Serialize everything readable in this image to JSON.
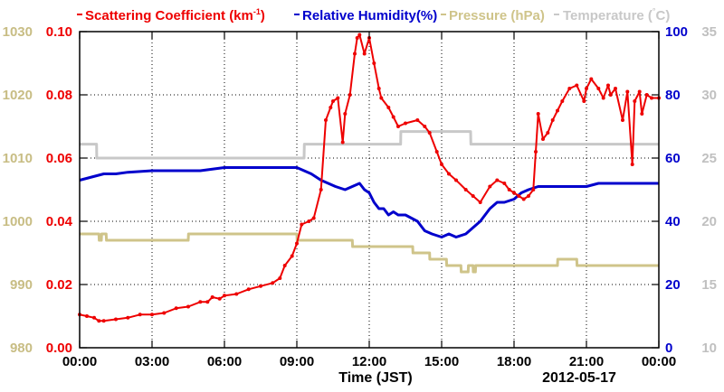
{
  "chart_data": {
    "type": "line",
    "legend": {
      "placement": "top",
      "entries": [
        {
          "key": "scat",
          "text": "Scattering Coefficient (km",
          "sup": "-1",
          "tail": ")",
          "color": "#ee0000"
        },
        {
          "key": "rh",
          "text": "Relative Humidity(%)",
          "color": "#0000cc"
        },
        {
          "key": "pres",
          "text": "Pressure (hPa)",
          "color": "#cfc48a"
        },
        {
          "key": "temp",
          "text": "Temperature (",
          "sup": "°",
          "tail": "C)",
          "color": "#c8c8c8"
        }
      ]
    },
    "xlabel": "Time (JST)",
    "date": "2012-05-17",
    "x_ticks": [
      "00:00",
      "03:00",
      "06:00",
      "09:00",
      "12:00",
      "15:00",
      "18:00",
      "21:00",
      "00:00"
    ],
    "xlim_hours": [
      0,
      24
    ],
    "grid": true,
    "axes": {
      "scat": {
        "side": "left-inner",
        "color": "#ee0000",
        "ylim": [
          0,
          0.1
        ],
        "ticks": [
          "0.00",
          "0.02",
          "0.04",
          "0.06",
          "0.08",
          "0.10"
        ]
      },
      "pres": {
        "side": "left-outer",
        "color": "#c8bd84",
        "ylim": [
          980,
          1030
        ],
        "ticks": [
          "980",
          "990",
          "1000",
          "1010",
          "1020",
          "1030"
        ]
      },
      "rh": {
        "side": "right-inner",
        "color": "#0000cc",
        "ylim": [
          0,
          100
        ],
        "ticks": [
          "0",
          "20",
          "40",
          "60",
          "80",
          "100"
        ]
      },
      "temp": {
        "side": "right-outer",
        "color": "#c0c0c0",
        "ylim": [
          10,
          35
        ],
        "ticks": [
          "10",
          "15",
          "20",
          "25",
          "30",
          "35"
        ]
      }
    },
    "series": [
      {
        "name": "Scattering Coefficient (km-1)",
        "axis": "scat",
        "color": "#ee0000",
        "marker": true,
        "x": [
          0,
          0.3,
          0.6,
          0.8,
          1.0,
          1.5,
          2.0,
          2.5,
          3.0,
          3.5,
          4.0,
          4.5,
          5.0,
          5.3,
          5.5,
          5.8,
          6.0,
          6.5,
          7.0,
          7.5,
          8.0,
          8.3,
          8.5,
          8.8,
          9.0,
          9.2,
          9.5,
          9.7,
          10.0,
          10.2,
          10.4,
          10.5,
          10.7,
          10.9,
          11.0,
          11.2,
          11.4,
          11.5,
          11.6,
          11.8,
          12.0,
          12.2,
          12.4,
          12.5,
          12.8,
          13.0,
          13.2,
          13.5,
          14.0,
          14.3,
          14.5,
          14.8,
          15.0,
          15.3,
          15.6,
          16.0,
          16.3,
          16.6,
          17.0,
          17.3,
          17.6,
          17.8,
          18.0,
          18.2,
          18.4,
          18.6,
          18.8,
          18.9,
          19.0,
          19.2,
          19.4,
          19.6,
          19.8,
          20.0,
          20.3,
          20.6,
          20.9,
          21.0,
          21.2,
          21.5,
          21.7,
          21.9,
          22.0,
          22.2,
          22.5,
          22.7,
          22.9,
          23.0,
          23.2,
          23.3,
          23.5,
          23.7,
          24.0
        ],
        "y": [
          0.0105,
          0.01,
          0.0095,
          0.0085,
          0.0085,
          0.009,
          0.0095,
          0.0105,
          0.0105,
          0.011,
          0.0125,
          0.013,
          0.0145,
          0.0145,
          0.016,
          0.0155,
          0.0165,
          0.017,
          0.0185,
          0.0195,
          0.0205,
          0.022,
          0.026,
          0.029,
          0.033,
          0.039,
          0.04,
          0.041,
          0.05,
          0.072,
          0.076,
          0.078,
          0.079,
          0.065,
          0.074,
          0.08,
          0.093,
          0.098,
          0.099,
          0.093,
          0.098,
          0.09,
          0.082,
          0.079,
          0.076,
          0.073,
          0.07,
          0.071,
          0.072,
          0.07,
          0.068,
          0.062,
          0.058,
          0.055,
          0.053,
          0.05,
          0.048,
          0.046,
          0.051,
          0.053,
          0.052,
          0.05,
          0.049,
          0.048,
          0.047,
          0.048,
          0.05,
          0.062,
          0.074,
          0.066,
          0.068,
          0.072,
          0.075,
          0.078,
          0.082,
          0.083,
          0.078,
          0.082,
          0.085,
          0.082,
          0.079,
          0.083,
          0.08,
          0.082,
          0.072,
          0.081,
          0.058,
          0.078,
          0.081,
          0.074,
          0.08,
          0.079,
          0.079
        ]
      },
      {
        "name": "Relative Humidity(%)",
        "axis": "rh",
        "color": "#0000cc",
        "x": [
          0,
          0.5,
          1.0,
          1.5,
          2.0,
          3.0,
          4.0,
          5.0,
          5.5,
          6.0,
          7.0,
          8.0,
          8.5,
          9.0,
          9.3,
          9.6,
          10.0,
          10.3,
          10.6,
          11.0,
          11.3,
          11.6,
          11.8,
          12.0,
          12.2,
          12.4,
          12.6,
          12.8,
          13.0,
          13.2,
          13.5,
          14.0,
          14.3,
          14.6,
          15.0,
          15.3,
          15.6,
          16.0,
          16.3,
          16.6,
          17.0,
          17.3,
          17.6,
          18.0,
          18.3,
          18.6,
          19.0,
          20.0,
          21.0,
          21.5,
          22.0,
          22.5,
          23.0,
          23.5,
          24.0
        ],
        "y": [
          53,
          54,
          55,
          55,
          55.5,
          56,
          56,
          56,
          56.5,
          57,
          57,
          57,
          57,
          57,
          56,
          55,
          53,
          52,
          51,
          50,
          51,
          52,
          50,
          49,
          46,
          44,
          44,
          42,
          43,
          42,
          42,
          40,
          37,
          36,
          35,
          36,
          35,
          36,
          38,
          40,
          44,
          46,
          46,
          47,
          49,
          50,
          51,
          51,
          51,
          52,
          52,
          52,
          52,
          52,
          52
        ]
      },
      {
        "name": "Pressure (hPa)",
        "axis": "pres",
        "color": "#cfc48a",
        "x": [
          0,
          0.8,
          0.81,
          0.9,
          0.91,
          1.1,
          1.11,
          4.5,
          4.51,
          9.0,
          9.01,
          11.3,
          11.31,
          13.8,
          13.81,
          14.5,
          14.51,
          15.2,
          15.21,
          15.8,
          15.81,
          16.1,
          16.11,
          16.3,
          16.31,
          16.4,
          16.41,
          19.8,
          19.81,
          20.6,
          20.61,
          24.0
        ],
        "y": [
          998,
          998,
          997,
          997,
          998,
          998,
          997,
          997,
          998,
          998,
          997,
          997,
          996,
          996,
          995,
          995,
          994,
          994,
          993,
          993,
          992,
          992,
          993,
          993,
          992,
          992,
          993,
          993,
          994,
          994,
          993,
          993
        ]
      },
      {
        "name": "Temperature (°C)",
        "axis": "temp",
        "color": "#c8c8c8",
        "x": [
          0,
          0.7,
          0.71,
          9.3,
          9.31,
          13.3,
          13.31,
          16.2,
          16.21,
          24.0
        ],
        "y": [
          26.1,
          26.1,
          25.0,
          25.0,
          26.1,
          26.1,
          27.1,
          27.1,
          26.1,
          26.1
        ]
      }
    ]
  }
}
